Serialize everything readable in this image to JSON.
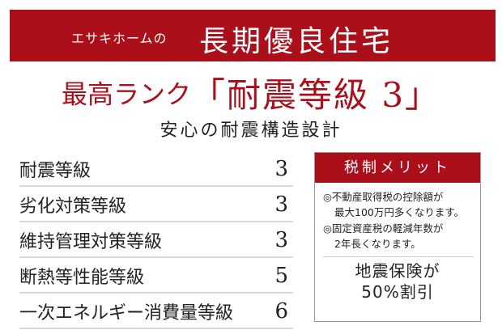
{
  "banner": {
    "prefix": "エサキホームの",
    "title": "長期優良住宅"
  },
  "headline": {
    "rank": "最高ランク",
    "grade": "「耐震等級 3」"
  },
  "subtitle": "安心の耐震構造設計",
  "grades": [
    {
      "label": "耐震等級",
      "value": "3"
    },
    {
      "label": "劣化対策等級",
      "value": "3"
    },
    {
      "label": "維持管理対策等級",
      "value": "3"
    },
    {
      "label": "断熱等性能等級",
      "value": "5"
    },
    {
      "label": "一次エネルギー消費量等級",
      "value": "6"
    }
  ],
  "tax_box": {
    "title": "税制メリット",
    "items": [
      {
        "line1": "◎不動産取得税の控除額が",
        "line2": "最大100万円多くなります。"
      },
      {
        "line1": "◎固定資産税の軽減年数が",
        "line2": "2年長くなります。"
      }
    ],
    "insurance_line1": "地震保険が",
    "insurance_line2": "50%割引"
  },
  "colors": {
    "brand_red": "#ab0f1a",
    "divider": "#d9d9d9"
  }
}
